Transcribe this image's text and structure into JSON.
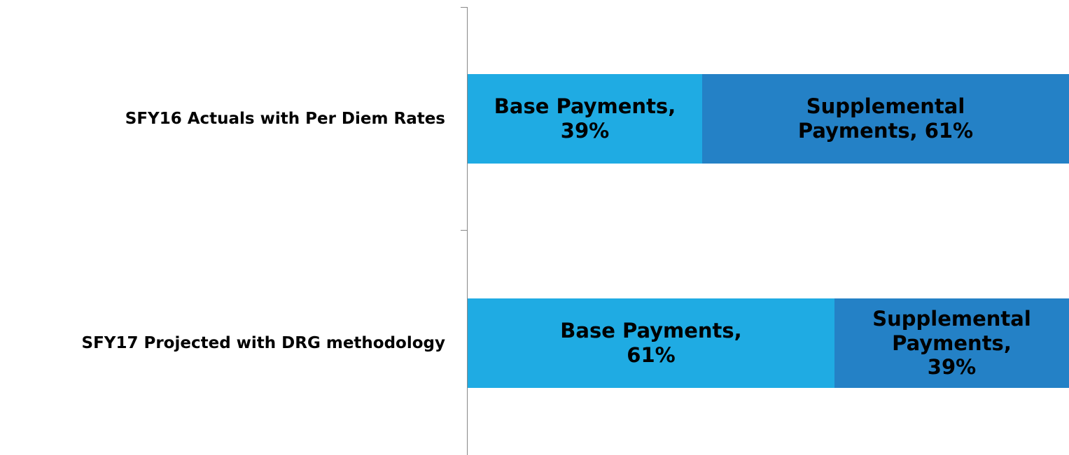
{
  "chart_data": {
    "type": "stacked-bar-horizontal",
    "categories": [
      "SFY16 Actuals with Per Diem Rates",
      "SFY17 Projected with DRG methodology"
    ],
    "series": [
      {
        "name": "Base Payments",
        "color": "#1fabe3",
        "values": [
          39,
          61
        ],
        "value_labels": [
          "Base Payments, 39%",
          "Base Payments, 61%"
        ]
      },
      {
        "name": "Supplemental Payments",
        "color": "#2481c6",
        "values": [
          61,
          39
        ],
        "value_labels": [
          "Supplemental Payments, 61%",
          "Supplemental Payments, 39%"
        ]
      }
    ],
    "xlim": [
      0,
      100
    ]
  }
}
